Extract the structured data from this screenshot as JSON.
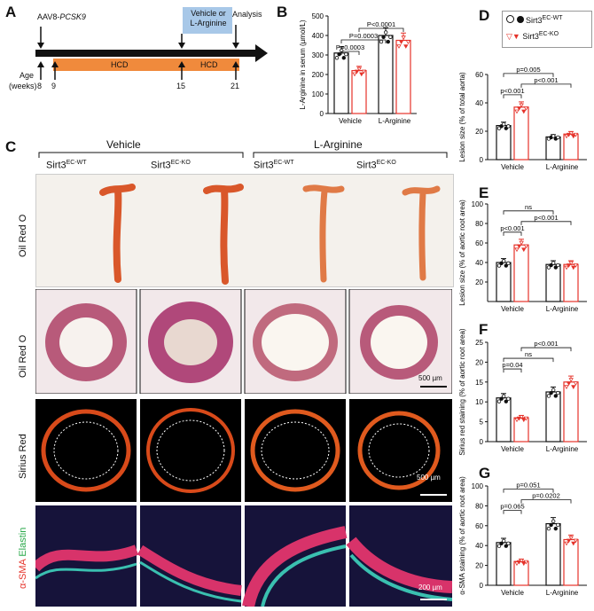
{
  "panelA": {
    "letter": "A",
    "aav": "AAV8-",
    "aav_gene": "PCSK9",
    "treat_line1": "Vehicle or",
    "treat_line2": "L-Arginine",
    "analysis": "Analysis",
    "age_line1": "Age",
    "age_line2": "(weeks)",
    "hcd1": "HCD",
    "hcd2": "HCD",
    "weeks": [
      "8",
      "9",
      "15",
      "21"
    ]
  },
  "panelB": {
    "letter": "B"
  },
  "panelC": {
    "letter": "C",
    "group_vehicle": "Vehicle",
    "group_larg": "L-Arginine",
    "genotypes": [
      "Sirt3",
      "Sirt3",
      "Sirt3",
      "Sirt3"
    ],
    "genotype_sups": [
      "EC-WT",
      "EC-KO",
      "EC-WT",
      "EC-KO"
    ],
    "row_labels": [
      "Oil Red O",
      "Oil Red O",
      "Sirius Red"
    ],
    "row4_label_red": "α-SMA",
    "row4_label_green": "Elastin",
    "scale_bars": [
      "500 µm",
      "500 µm",
      "200 µm"
    ]
  },
  "panelD": {
    "letter": "D",
    "legend_wt": "Sirt3",
    "legend_wt_sup": "EC-WT",
    "legend_ko": "Sirt3",
    "legend_ko_sup": "EC-KO"
  },
  "panelE": {
    "letter": "E"
  },
  "panelF": {
    "letter": "F"
  },
  "panelG": {
    "letter": "G"
  },
  "colors": {
    "wt": "#111111",
    "ko": "#e5332a",
    "hcd_bar": "#f08a3c",
    "treat_box": "#a8c8e8"
  },
  "chart_data": [
    {
      "id": "B",
      "type": "bar",
      "ylabel": "L-Arginine in serum (µmol/L)",
      "ylim": [
        0,
        500
      ],
      "yticks": [
        0,
        100,
        200,
        300,
        400,
        500
      ],
      "categories": [
        "Vehicle",
        "L-Arginine"
      ],
      "series": [
        {
          "name": "Sirt3 EC-WT",
          "values": [
            310,
            400
          ]
        },
        {
          "name": "Sirt3 EC-KO",
          "values": [
            220,
            375
          ]
        }
      ],
      "annotations": [
        "P=0.0003",
        "P=0.0003",
        "P<0.0001"
      ]
    },
    {
      "id": "D",
      "type": "bar",
      "ylabel": "Lesion size (% of total aorta)",
      "ylim": [
        0,
        60
      ],
      "yticks": [
        0,
        20,
        40,
        60
      ],
      "categories": [
        "Vehicle",
        "L-Arginine"
      ],
      "series": [
        {
          "name": "Sirt3 EC-WT",
          "values": [
            24,
            16
          ]
        },
        {
          "name": "Sirt3 EC-KO",
          "values": [
            37,
            18
          ]
        }
      ],
      "annotations": [
        "p=0.005",
        "p<0.001",
        "p<0.001"
      ]
    },
    {
      "id": "E",
      "type": "bar",
      "ylabel": "Lesion size (% of aortic root area)",
      "ylim": [
        0,
        100
      ],
      "yticks": [
        20,
        40,
        60,
        80,
        100
      ],
      "categories": [
        "Vehicle",
        "L-Arginine"
      ],
      "series": [
        {
          "name": "Sirt3 EC-WT",
          "values": [
            40,
            38
          ]
        },
        {
          "name": "Sirt3 EC-KO",
          "values": [
            58,
            38
          ]
        }
      ],
      "annotations": [
        "ns",
        "p<0.001",
        "p<0.001"
      ]
    },
    {
      "id": "F",
      "type": "bar",
      "ylabel": "Sirius red staining (% of aortic root area)",
      "ylim": [
        0,
        25
      ],
      "yticks": [
        0,
        5,
        10,
        15,
        20,
        25
      ],
      "categories": [
        "Vehicle",
        "L-Arginine"
      ],
      "series": [
        {
          "name": "Sirt3 EC-WT",
          "values": [
            11,
            12.5
          ]
        },
        {
          "name": "Sirt3 EC-KO",
          "values": [
            6,
            15
          ]
        }
      ],
      "annotations": [
        "p<0.001",
        "ns",
        "p=0.04"
      ]
    },
    {
      "id": "G",
      "type": "bar",
      "ylabel": "α-SMA staining (% of aortic root area)",
      "ylim": [
        0,
        100
      ],
      "yticks": [
        0,
        20,
        40,
        60,
        80,
        100
      ],
      "categories": [
        "Vehicle",
        "L-Arginine"
      ],
      "series": [
        {
          "name": "Sirt3 EC-WT",
          "values": [
            43,
            62
          ]
        },
        {
          "name": "Sirt3 EC-KO",
          "values": [
            24,
            46
          ]
        }
      ],
      "annotations": [
        "p=0.051",
        "p=0.0202",
        "p=0.065"
      ]
    }
  ]
}
